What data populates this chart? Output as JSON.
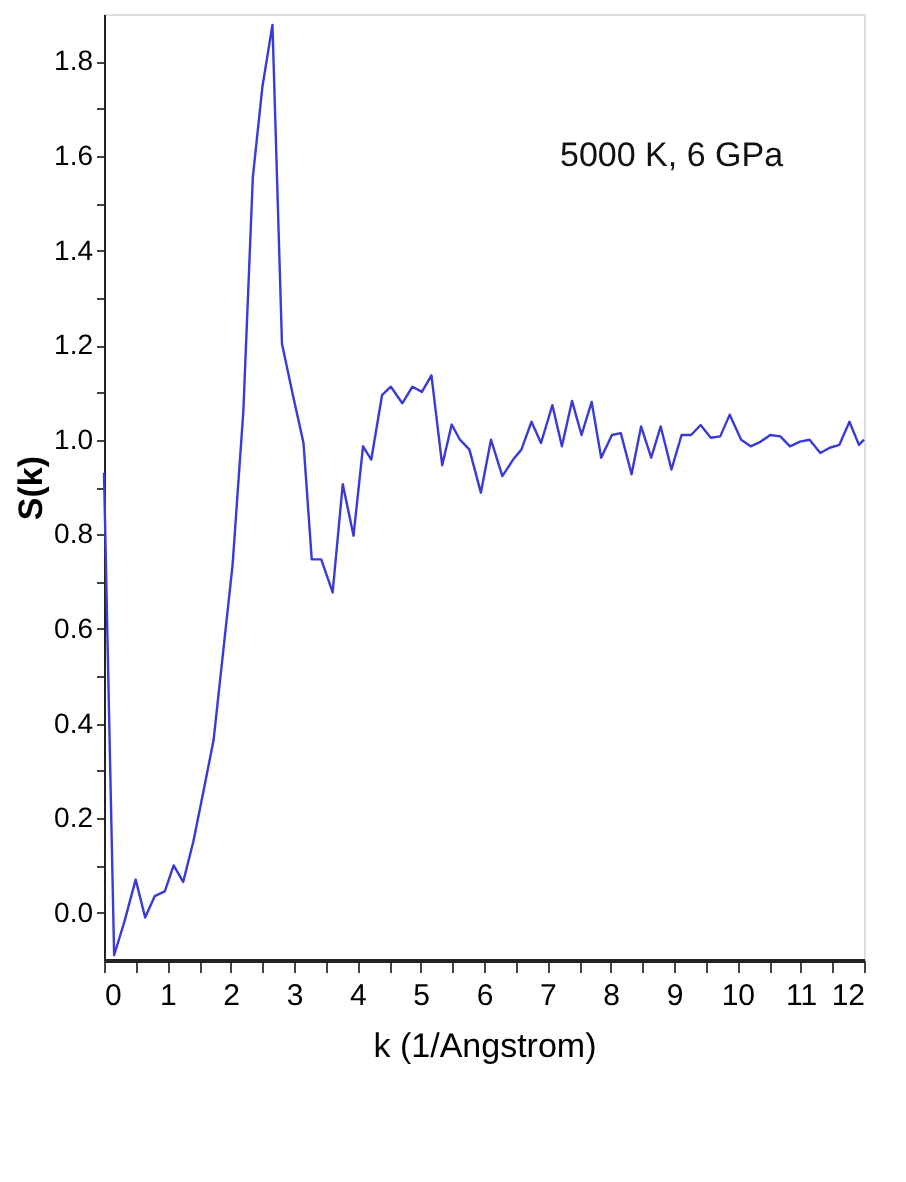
{
  "chart_data": {
    "type": "line",
    "xlabel": "k (1/Angstrom)",
    "ylabel": "S(k)",
    "annotations": [
      "5000 K, 6 GPa"
    ],
    "x": [
      0,
      0.16,
      0.32,
      0.5,
      0.65,
      0.8,
      0.96,
      1.1,
      1.25,
      1.41,
      1.57,
      1.73,
      1.88,
      2.03,
      2.2,
      2.35,
      2.5,
      2.66,
      2.81,
      2.99,
      3.15,
      3.28,
      3.43,
      3.61,
      3.77,
      3.94,
      4.09,
      4.22,
      4.39,
      4.53,
      4.71,
      4.87,
      5.02,
      5.17,
      5.34,
      5.49,
      5.62,
      5.77,
      5.95,
      6.11,
      6.29,
      6.46,
      6.59,
      6.75,
      6.9,
      7.08,
      7.23,
      7.39,
      7.54,
      7.7,
      7.85,
      8.02,
      8.16,
      8.33,
      8.48,
      8.64,
      8.79,
      8.96,
      9.12,
      9.27,
      9.42,
      9.58,
      9.73,
      9.88,
      10.06,
      10.21,
      10.37,
      10.52,
      10.68,
      10.83,
      10.99,
      11.14,
      11.31,
      11.46,
      11.61,
      11.77,
      11.92,
      12
    ],
    "series": [
      {
        "color": "#3a3ad6",
        "values": [
          0.93,
          -0.09,
          -0.02,
          0.07,
          -0.01,
          0.035,
          0.045,
          0.1,
          0.065,
          0.15,
          0.256,
          0.365,
          0.55,
          0.735,
          1.06,
          1.555,
          1.745,
          1.877,
          1.203,
          1.09,
          0.993,
          0.747,
          0.747,
          0.677,
          0.906,
          0.797,
          0.986,
          0.958,
          1.094,
          1.112,
          1.077,
          1.112,
          1.101,
          1.136,
          0.946,
          1.032,
          1.0,
          0.979,
          0.888,
          1.0,
          0.923,
          0.958,
          0.979,
          1.038,
          0.993,
          1.073,
          0.986,
          1.082,
          1.01,
          1.08,
          0.962,
          1.01,
          1.014,
          0.927,
          1.028,
          0.962,
          1.028,
          0.937,
          1.01,
          1.01,
          1.031,
          1.004,
          1.007,
          1.053,
          1.0,
          0.986,
          0.996,
          1.01,
          1.007,
          0.986,
          0.996,
          1.0,
          0.972,
          0.983,
          0.989,
          1.038,
          0.989,
          1.0
        ]
      }
    ],
    "xlim": [
      0,
      12
    ],
    "xticks": [
      0,
      {
        "value": 0.5,
        "label": null
      },
      1,
      {
        "value": 1.5,
        "label": null
      },
      2,
      {
        "value": 2.5,
        "label": null
      },
      3,
      {
        "value": 3.5,
        "label": null
      },
      4,
      {
        "value": 4.5,
        "label": null
      },
      5,
      {
        "value": 5.5,
        "label": null
      },
      6,
      {
        "value": 6.5,
        "label": null
      },
      7,
      {
        "value": 7.5,
        "label": null
      },
      8,
      {
        "value": 8.5,
        "label": null
      },
      9,
      {
        "value": 9.5,
        "label": null
      },
      10,
      {
        "value": 10.5,
        "label": null
      },
      11,
      {
        "value": 11.5,
        "label": null
      },
      12
    ],
    "ylim": [
      -0.1,
      1.9
    ],
    "yticks": [
      {
        "value": 0.0,
        "label": "0.0"
      },
      {
        "value": 0.1,
        "label": null
      },
      {
        "value": 0.2,
        "label": "0.2"
      },
      {
        "value": 0.3,
        "label": null
      },
      {
        "value": 0.4,
        "label": "0.4"
      },
      {
        "value": 0.5,
        "label": null
      },
      {
        "value": 0.6,
        "label": "0.6"
      },
      {
        "value": 0.7,
        "label": null
      },
      {
        "value": 0.8,
        "label": "0.8"
      },
      {
        "value": 0.9,
        "label": null
      },
      {
        "value": 1.0,
        "label": "1.0"
      },
      {
        "value": 1.1,
        "label": null
      },
      {
        "value": 1.2,
        "label": "1.2"
      },
      {
        "value": 1.3,
        "label": null
      },
      {
        "value": 1.4,
        "label": "1.4"
      },
      {
        "value": 1.5,
        "label": null
      },
      {
        "value": 1.6,
        "label": "1.6"
      },
      {
        "value": 1.7,
        "label": null
      },
      {
        "value": 1.8,
        "label": "1.8"
      }
    ],
    "grid": false,
    "marker": "none",
    "line_style": "solid"
  }
}
